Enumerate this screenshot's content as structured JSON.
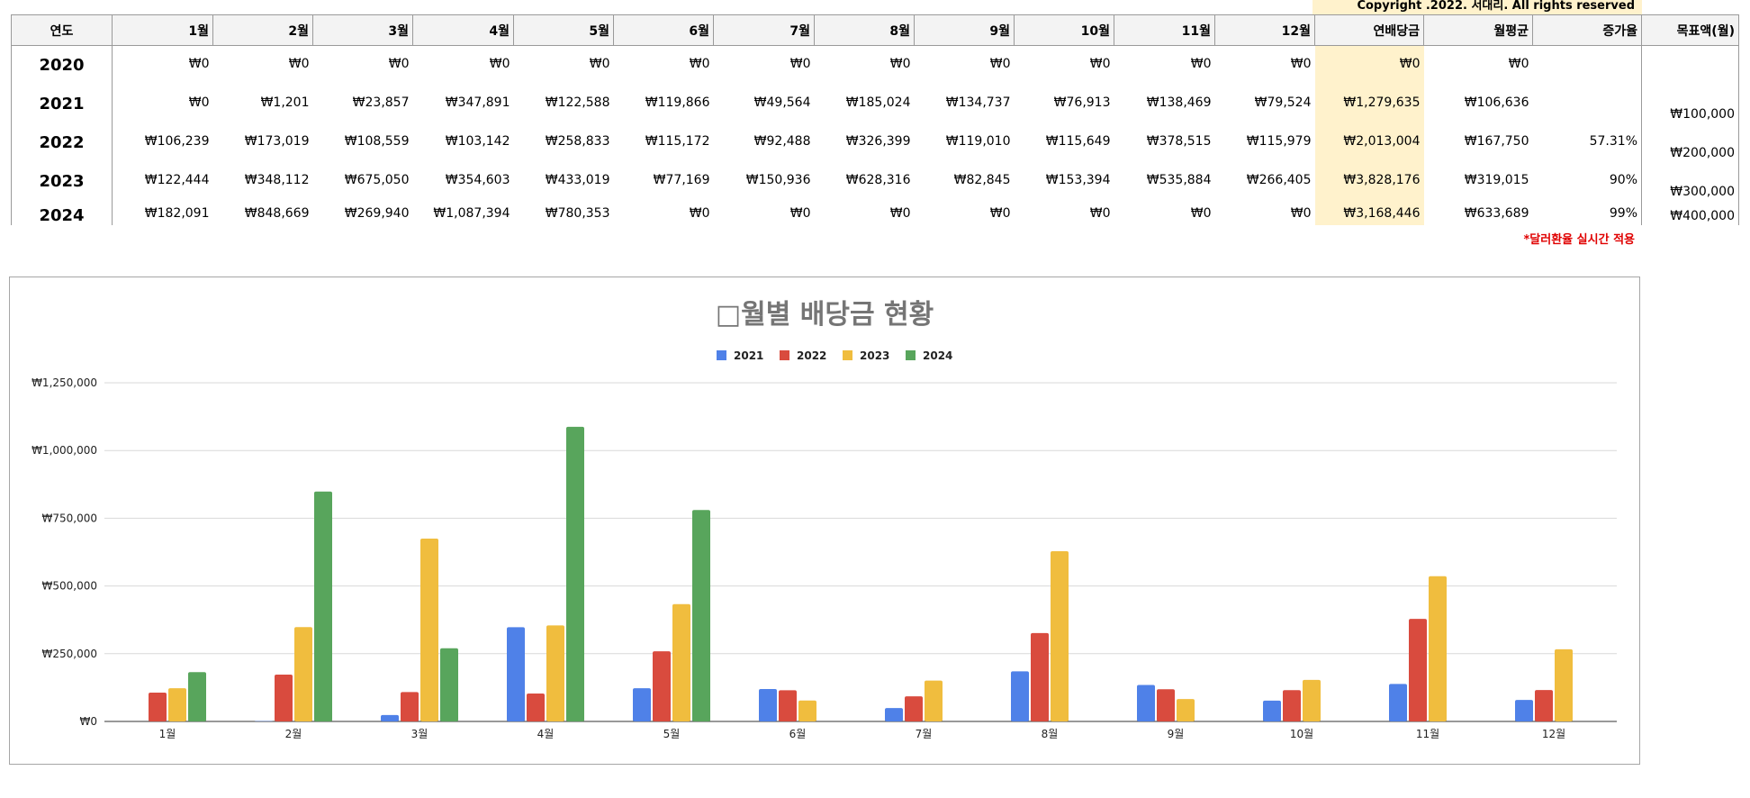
{
  "copyright": "Copyright .2022. 서대리. All rights reserved",
  "table": {
    "headers": [
      "연도",
      "1월",
      "2월",
      "3월",
      "4월",
      "5월",
      "6월",
      "7월",
      "8월",
      "9월",
      "10월",
      "11월",
      "12월",
      "연배당금",
      "월평균",
      "증가율",
      "목표액(월)"
    ],
    "rows": [
      {
        "year": "2020",
        "months": [
          "₩0",
          "₩0",
          "₩0",
          "₩0",
          "₩0",
          "₩0",
          "₩0",
          "₩0",
          "₩0",
          "₩0",
          "₩0",
          "₩0"
        ],
        "annual": "₩0",
        "avg": "₩0",
        "growth": "",
        "target": ""
      },
      {
        "year": "2021",
        "months": [
          "₩0",
          "₩1,201",
          "₩23,857",
          "₩347,891",
          "₩122,588",
          "₩119,866",
          "₩49,564",
          "₩185,024",
          "₩134,737",
          "₩76,913",
          "₩138,469",
          "₩79,524"
        ],
        "annual": "₩1,279,635",
        "avg": "₩106,636",
        "growth": "",
        "target": "₩100,000"
      },
      {
        "year": "2022",
        "months": [
          "₩106,239",
          "₩173,019",
          "₩108,559",
          "₩103,142",
          "₩258,833",
          "₩115,172",
          "₩92,488",
          "₩326,399",
          "₩119,010",
          "₩115,649",
          "₩378,515",
          "₩115,979"
        ],
        "annual": "₩2,013,004",
        "avg": "₩167,750",
        "growth": "57.31%",
        "target": "₩200,000"
      },
      {
        "year": "2023",
        "months": [
          "₩122,444",
          "₩348,112",
          "₩675,050",
          "₩354,603",
          "₩433,019",
          "₩77,169",
          "₩150,936",
          "₩628,316",
          "₩82,845",
          "₩153,394",
          "₩535,884",
          "₩266,405"
        ],
        "annual": "₩3,828,176",
        "avg": "₩319,015",
        "growth": "90%",
        "target": "₩300,000"
      },
      {
        "year": "2024",
        "months": [
          "₩182,091",
          "₩848,669",
          "₩269,940",
          "₩1,087,394",
          "₩780,353",
          "₩0",
          "₩0",
          "₩0",
          "₩0",
          "₩0",
          "₩0",
          "₩0"
        ],
        "annual": "₩3,168,446",
        "avg": "₩633,689",
        "growth": "99%",
        "target": "₩400,000"
      }
    ]
  },
  "fx_note": "*달러환율 실시간 적용",
  "chart_data": {
    "type": "bar",
    "title": "□월별 배당금 현황",
    "categories": [
      "1월",
      "2월",
      "3월",
      "4월",
      "5월",
      "6월",
      "7월",
      "8월",
      "9월",
      "10월",
      "11월",
      "12월"
    ],
    "series": [
      {
        "name": "2021",
        "color": "#4f81e8",
        "values": [
          0,
          1201,
          23857,
          347891,
          122588,
          119866,
          49564,
          185024,
          134737,
          76913,
          138469,
          79524
        ]
      },
      {
        "name": "2022",
        "color": "#d94b3e",
        "values": [
          106239,
          173019,
          108559,
          103142,
          258833,
          115172,
          92488,
          326399,
          119010,
          115649,
          378515,
          115979
        ]
      },
      {
        "name": "2023",
        "color": "#f0bd3e",
        "values": [
          122444,
          348112,
          675050,
          354603,
          433019,
          77169,
          150936,
          628316,
          82845,
          153394,
          535884,
          266405
        ]
      },
      {
        "name": "2024",
        "color": "#58a55c",
        "values": [
          182091,
          848669,
          269940,
          1087394,
          780353,
          0,
          0,
          0,
          0,
          0,
          0,
          0
        ]
      }
    ],
    "ylim": [
      0,
      1250000
    ],
    "yticks": [
      0,
      250000,
      500000,
      750000,
      1000000,
      1250000
    ],
    "ytick_labels": [
      "₩0",
      "₩250,000",
      "₩500,000",
      "₩750,000",
      "₩1,000,000",
      "₩1,250,000"
    ],
    "legend_position": "top-center",
    "grid": true
  }
}
